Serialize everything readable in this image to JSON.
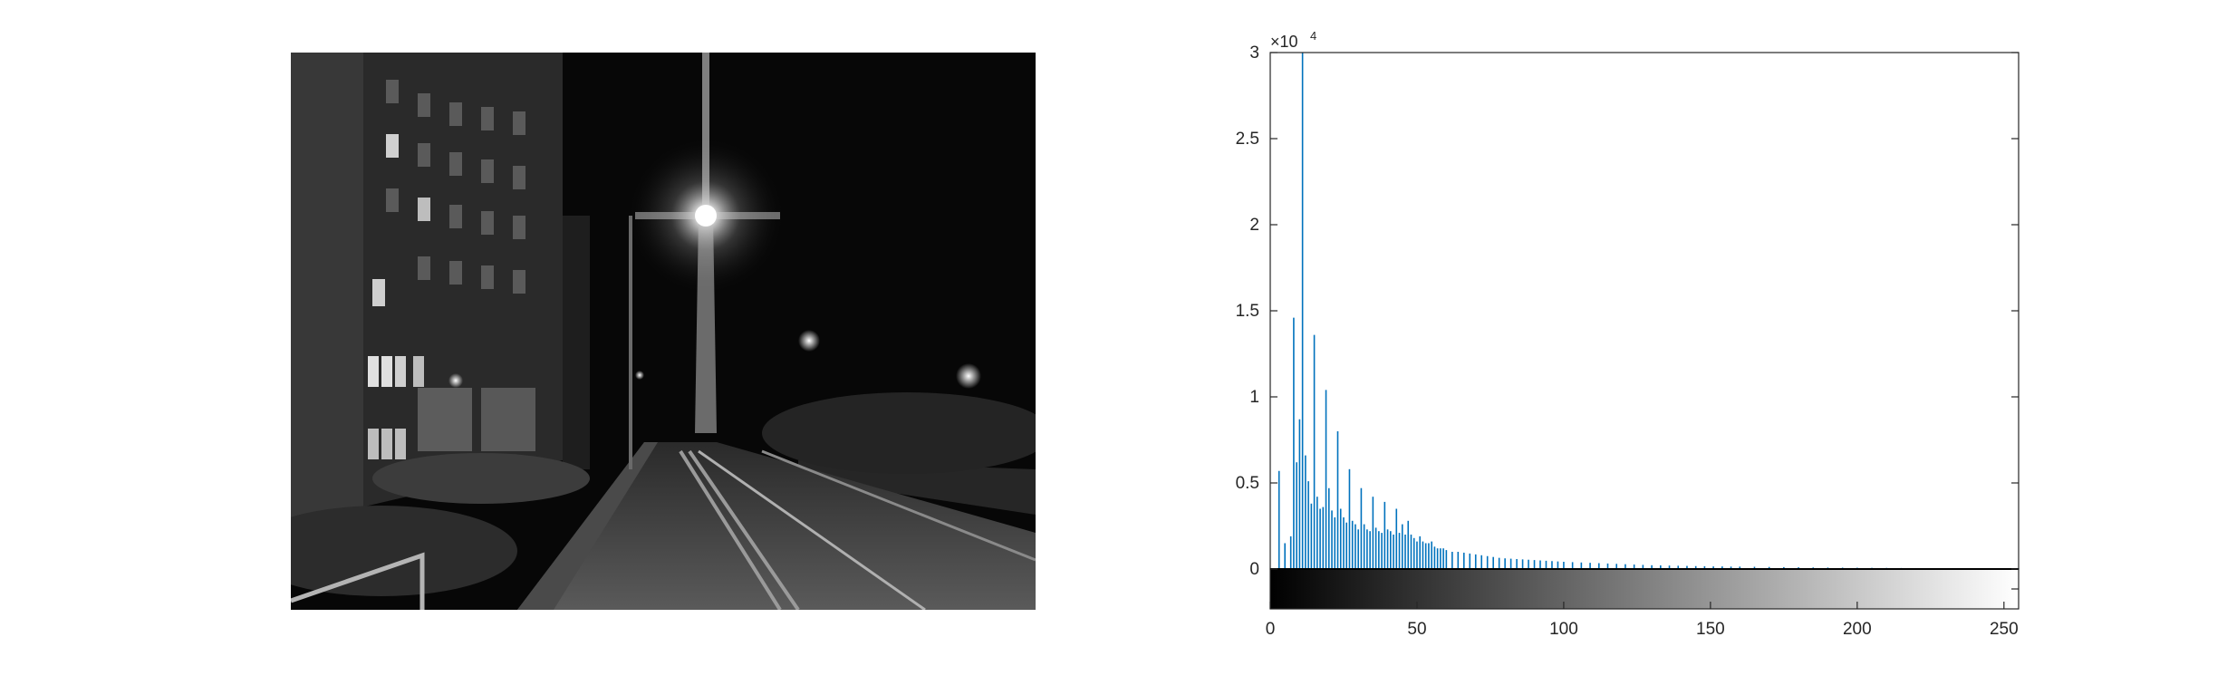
{
  "photo": {
    "subject": "grayscale night street scene with street lamp and buildings"
  },
  "chart_data": {
    "type": "bar",
    "title": "",
    "xlabel": "",
    "ylabel": "",
    "xlim": [
      0,
      255
    ],
    "ylim": [
      0,
      30000
    ],
    "y_exponent_label": "×10",
    "y_exponent_power": "4",
    "x_ticks": [
      "0",
      "50",
      "100",
      "150",
      "200",
      "250"
    ],
    "x_tick_values": [
      0,
      50,
      100,
      150,
      200,
      250
    ],
    "y_ticks": [
      "0",
      "0.5",
      "1",
      "1.5",
      "2",
      "2.5",
      "3"
    ],
    "y_tick_values": [
      0,
      5000,
      10000,
      15000,
      20000,
      25000,
      30000
    ],
    "bar_color": "#0072BD",
    "colorbar": "grayscale 0-255",
    "series": [
      {
        "bins": [
          3,
          5,
          7,
          8,
          9,
          10,
          11,
          12,
          13,
          14,
          15,
          16,
          17,
          18,
          19,
          20,
          21,
          22,
          23,
          24,
          25,
          26,
          27,
          28,
          29,
          30,
          31,
          32,
          33,
          34,
          35,
          36,
          37,
          38,
          39,
          40,
          41,
          42,
          43,
          44,
          45,
          46,
          47,
          48,
          49,
          50,
          51,
          52,
          53,
          54,
          55,
          56,
          57,
          58,
          59,
          60,
          62,
          64,
          66,
          68,
          70,
          72,
          74,
          76,
          78,
          80,
          82,
          84,
          86,
          88,
          90,
          92,
          94,
          96,
          98,
          100,
          103,
          106,
          109,
          112,
          115,
          118,
          121,
          124,
          127,
          130,
          133,
          136,
          139,
          142,
          145,
          148,
          151,
          154,
          157,
          160,
          165,
          170,
          175,
          180,
          185,
          190,
          195,
          200,
          205,
          210,
          215,
          220,
          225,
          230,
          235,
          240,
          245,
          250,
          255
        ],
        "values": [
          5700,
          1500,
          1900,
          14600,
          6200,
          8700,
          30000,
          6600,
          5100,
          3800,
          13600,
          4200,
          3500,
          3600,
          10400,
          4700,
          3400,
          3000,
          8000,
          3500,
          3000,
          2700,
          5800,
          2800,
          2600,
          2300,
          4700,
          2600,
          2300,
          2200,
          4200,
          2400,
          2200,
          2100,
          3900,
          2300,
          2200,
          2000,
          3500,
          2100,
          2600,
          2000,
          2800,
          2000,
          1800,
          1600,
          1900,
          1600,
          1500,
          1500,
          1600,
          1300,
          1200,
          1200,
          1200,
          1100,
          1000,
          1000,
          950,
          900,
          850,
          800,
          750,
          700,
          650,
          620,
          600,
          580,
          560,
          540,
          520,
          500,
          480,
          460,
          440,
          420,
          400,
          380,
          360,
          340,
          320,
          300,
          280,
          260,
          240,
          220,
          210,
          200,
          190,
          180,
          170,
          160,
          150,
          150,
          140,
          140,
          130,
          120,
          110,
          100,
          90,
          85,
          80,
          75,
          70,
          65,
          60,
          55,
          50,
          45,
          40,
          35,
          30,
          25,
          20
        ]
      }
    ]
  }
}
